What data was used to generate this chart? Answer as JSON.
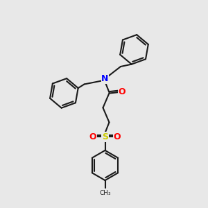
{
  "background_color": "#e8e8e8",
  "bond_color": "#1a1a1a",
  "N_color": "#0000ff",
  "O_color": "#ff0000",
  "S_color": "#cccc00",
  "bond_width": 1.5,
  "figsize": [
    3.0,
    3.0
  ],
  "dpi": 100,
  "xlim": [
    0,
    10
  ],
  "ylim": [
    0,
    10
  ]
}
